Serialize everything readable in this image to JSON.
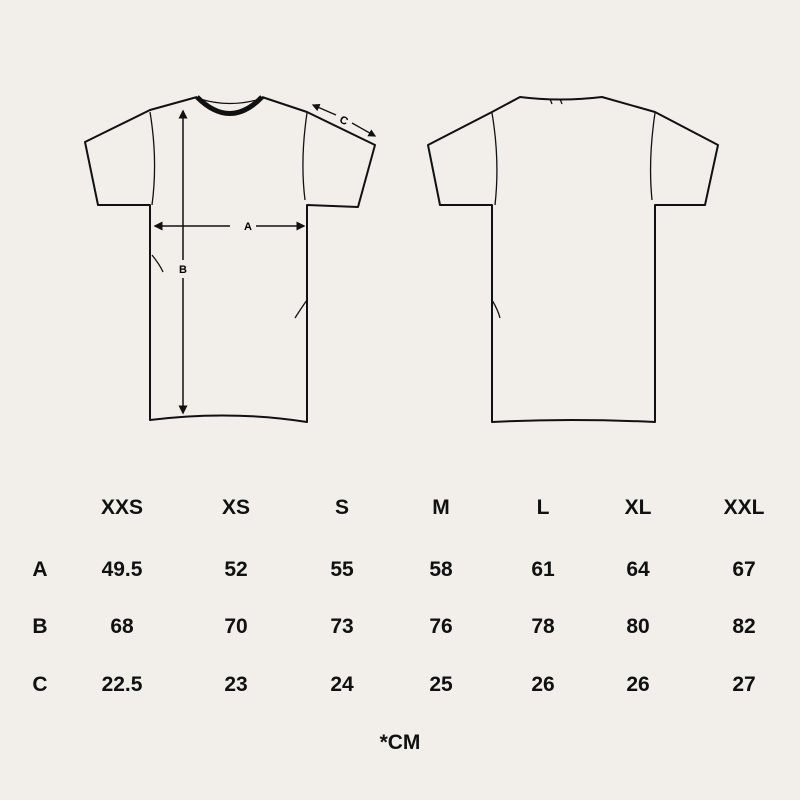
{
  "diagram": {
    "labels": {
      "a": "A",
      "b": "B",
      "c": "C"
    }
  },
  "table": {
    "sizes": [
      "XXS",
      "XS",
      "S",
      "M",
      "L",
      "XL",
      "XXL"
    ],
    "rows": [
      {
        "label": "A",
        "values": [
          "49.5",
          "52",
          "55",
          "58",
          "61",
          "64",
          "67"
        ]
      },
      {
        "label": "B",
        "values": [
          "68",
          "70",
          "73",
          "76",
          "78",
          "80",
          "82"
        ]
      },
      {
        "label": "C",
        "values": [
          "22.5",
          "23",
          "24",
          "25",
          "26",
          "26",
          "27"
        ]
      }
    ]
  },
  "unit_note": "*CM",
  "colors": {
    "background": "#f2efea",
    "ink": "#111111"
  }
}
